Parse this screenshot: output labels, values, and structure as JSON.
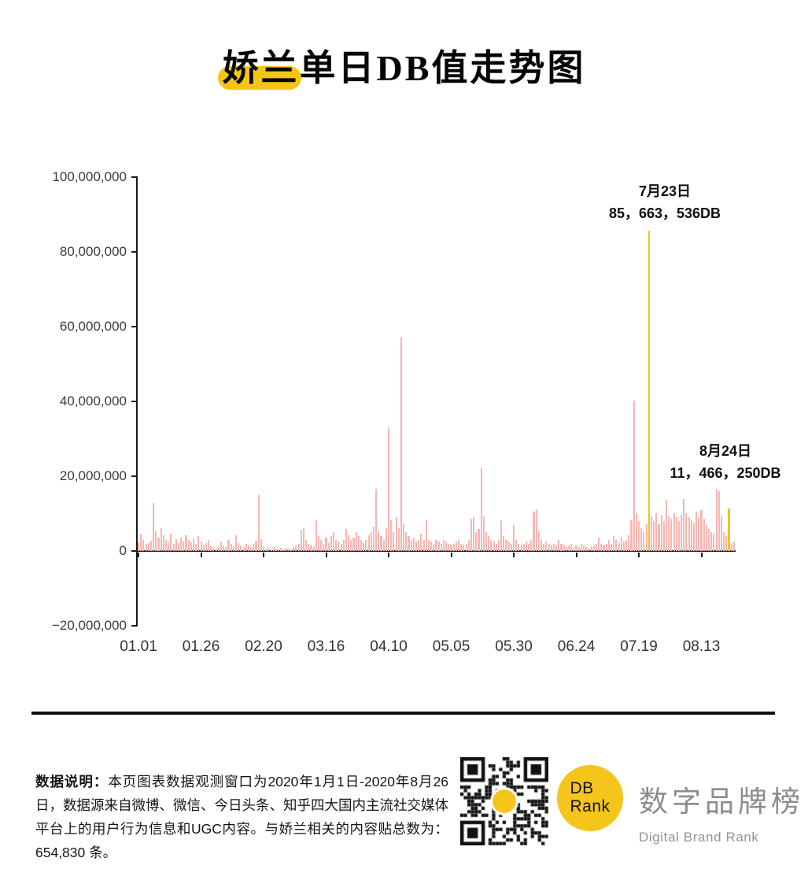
{
  "title": {
    "highlight_part": "娇兰",
    "rest_part": "单日DB值走势图",
    "highlight_color": "#F6C514"
  },
  "chart_data": {
    "type": "bar",
    "title": "娇兰单日DB值走势图",
    "xlabel": "",
    "ylabel": "",
    "ylim": [
      -20000000,
      100000000
    ],
    "grid": false,
    "bar_color": "#F5B7B3",
    "highlight_color": "#F3C318",
    "y_ticks": [
      -20000000,
      0,
      20000000,
      40000000,
      60000000,
      80000000,
      100000000
    ],
    "y_tick_labels": [
      "−20,000,000",
      "0",
      "20,000,000",
      "40,000,000",
      "60,000,000",
      "80,000,000",
      "100,000,000"
    ],
    "x_tick_labels": [
      "01.01",
      "01.26",
      "02.20",
      "03.16",
      "04.10",
      "05.05",
      "05.30",
      "06.24",
      "07.19",
      "08.13"
    ],
    "x_tick_indices": [
      0,
      25,
      50,
      75,
      100,
      125,
      150,
      175,
      200,
      225
    ],
    "highlight_indices": [
      204,
      236
    ],
    "annotations": [
      {
        "date": "7月23日",
        "value_label": "85，663，536DB",
        "index": 204,
        "value": 85663536
      },
      {
        "date": "8月24日",
        "value_label": "11，466，250DB",
        "index": 236,
        "value": 11466250
      }
    ],
    "values": [
      2400000,
      4600000,
      3000000,
      1800000,
      2200000,
      2800000,
      12800000,
      5200000,
      3600000,
      6200000,
      4200000,
      3000000,
      2400000,
      4600000,
      2000000,
      3200000,
      2200000,
      3600000,
      2600000,
      4200000,
      3000000,
      2400000,
      3200000,
      2000000,
      4000000,
      2600000,
      1600000,
      2200000,
      3000000,
      1200000,
      900000,
      600000,
      1100000,
      2600000,
      1500000,
      1000000,
      3000000,
      2000000,
      1100000,
      4200000,
      2200000,
      1500000,
      1000000,
      2000000,
      1400000,
      1000000,
      2000000,
      2800000,
      14900000,
      3200000,
      1000000,
      500000,
      800000,
      500000,
      1000000,
      600000,
      400000,
      800000,
      500000,
      900000,
      700000,
      500000,
      1000000,
      1500000,
      2000000,
      5600000,
      6200000,
      3000000,
      2000000,
      1500000,
      1000000,
      8200000,
      4000000,
      3000000,
      2000000,
      3600000,
      2200000,
      4000000,
      5000000,
      3000000,
      2600000,
      2000000,
      3000000,
      6000000,
      4200000,
      3000000,
      3600000,
      5000000,
      4000000,
      3000000,
      2200000,
      3000000,
      4200000,
      5000000,
      6600000,
      16600000,
      5200000,
      4000000,
      3000000,
      6200000,
      33000000,
      8200000,
      5000000,
      9000000,
      6200000,
      57300000,
      7200000,
      5000000,
      4000000,
      3000000,
      3600000,
      2600000,
      3000000,
      4600000,
      3000000,
      8200000,
      3000000,
      2600000,
      2000000,
      3000000,
      2600000,
      2000000,
      3000000,
      2600000,
      2000000,
      1600000,
      2000000,
      2600000,
      3000000,
      2000000,
      1600000,
      2000000,
      3000000,
      8600000,
      9000000,
      5000000,
      6000000,
      22200000,
      9200000,
      5000000,
      4000000,
      3000000,
      2600000,
      2000000,
      3000000,
      8200000,
      4000000,
      3000000,
      2600000,
      2000000,
      7000000,
      3000000,
      2000000,
      1600000,
      2000000,
      2600000,
      2000000,
      3000000,
      10600000,
      11200000,
      5200000,
      3000000,
      2000000,
      2600000,
      2000000,
      1600000,
      2000000,
      1500000,
      3000000,
      2000000,
      1600000,
      1000000,
      1500000,
      2000000,
      1000000,
      1500000,
      1000000,
      2000000,
      1500000,
      1000000,
      800000,
      1200000,
      1500000,
      2000000,
      3600000,
      2000000,
      1600000,
      2000000,
      3000000,
      2000000,
      4000000,
      3000000,
      2200000,
      3600000,
      2600000,
      3000000,
      4200000,
      8200000,
      40200000,
      10200000,
      8000000,
      6200000,
      5000000,
      7200000,
      85663536,
      9200000,
      8000000,
      10200000,
      7200000,
      9600000,
      8000000,
      13600000,
      9200000,
      8600000,
      10200000,
      9000000,
      8000000,
      9600000,
      13800000,
      10200000,
      9000000,
      8200000,
      7600000,
      10600000,
      9000000,
      11000000,
      8600000,
      7000000,
      6000000,
      5000000,
      4600000,
      16600000,
      16000000,
      9200000,
      5000000,
      4000000,
      11466250,
      2200000,
      2600000
    ]
  },
  "footer": {
    "note_bold": "数据说明：",
    "note": "本页图表数据观测窗口为2020年1月1日-2020年8月26日，数据源来自微博、微信、今日头条、知乎四大国内主流社交媒体平台上的用户行为信息和UGC内容。与娇兰相关的内容贴总数为：654,830 条。",
    "logo": {
      "line1": "DB",
      "line2": "Rank",
      "color": "#F5C51C"
    },
    "brand_cn": "数字品牌榜",
    "brand_en": "Digital Brand Rank"
  }
}
